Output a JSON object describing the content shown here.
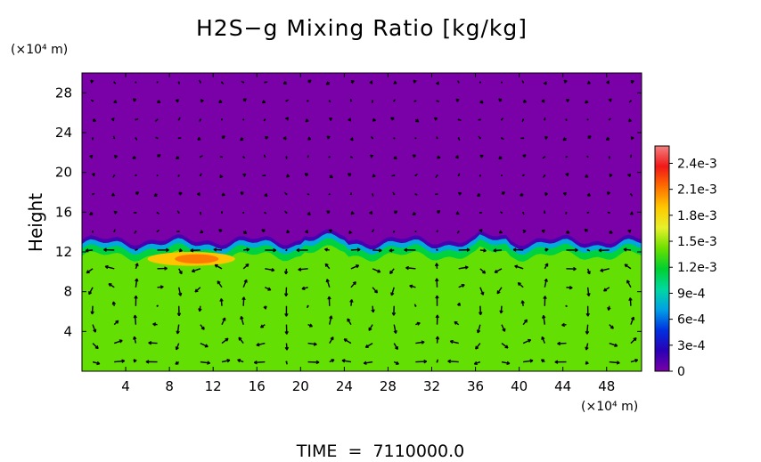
{
  "chart_data": {
    "type": "heatmap",
    "title": "H2S−g Mixing Ratio [kg/kg]",
    "xlabel": "",
    "ylabel": "Height",
    "x_unit": "(×10⁴ m)",
    "y_unit": "(×10⁴ m)",
    "x_ticks": [
      "4",
      "8",
      "12",
      "16",
      "20",
      "24",
      "28",
      "32",
      "36",
      "40",
      "44",
      "48"
    ],
    "y_ticks": [
      "4",
      "8",
      "12",
      "16",
      "20",
      "24",
      "28"
    ],
    "x_tick_values": [
      4,
      8,
      12,
      16,
      20,
      24,
      28,
      32,
      36,
      40,
      44,
      48
    ],
    "y_tick_values": [
      4,
      8,
      12,
      16,
      20,
      24,
      28
    ],
    "xlim": [
      0,
      51.2
    ],
    "ylim": [
      0,
      30
    ],
    "colorbar": {
      "labels": [
        "2.4e-3",
        "2.1e-3",
        "1.8e-3",
        "1.5e-3",
        "1.2e-3",
        "9e-4",
        "6e-4",
        "3e-4",
        "0"
      ],
      "values": [
        0.0024,
        0.0021,
        0.0018,
        0.0015,
        0.0012,
        0.0009,
        0.0006,
        0.0003,
        0
      ],
      "range": [
        0,
        0.0026
      ],
      "colors": [
        "#7a00a8",
        "#2a00b4",
        "#0030e0",
        "#00a0e6",
        "#00d8a0",
        "#00d030",
        "#6ce000",
        "#e6f02a",
        "#ffc800",
        "#ff7000",
        "#f01818",
        "#f48080"
      ]
    },
    "field": {
      "cloud_top_height": 13.2,
      "background_below": 0.0014,
      "background_above": 0,
      "high_region": {
        "x_range": [
          6,
          14
        ],
        "y_range": [
          10.6,
          12
        ],
        "value": 0.0019
      }
    },
    "annotation": "TIME  =  7110000.0"
  }
}
